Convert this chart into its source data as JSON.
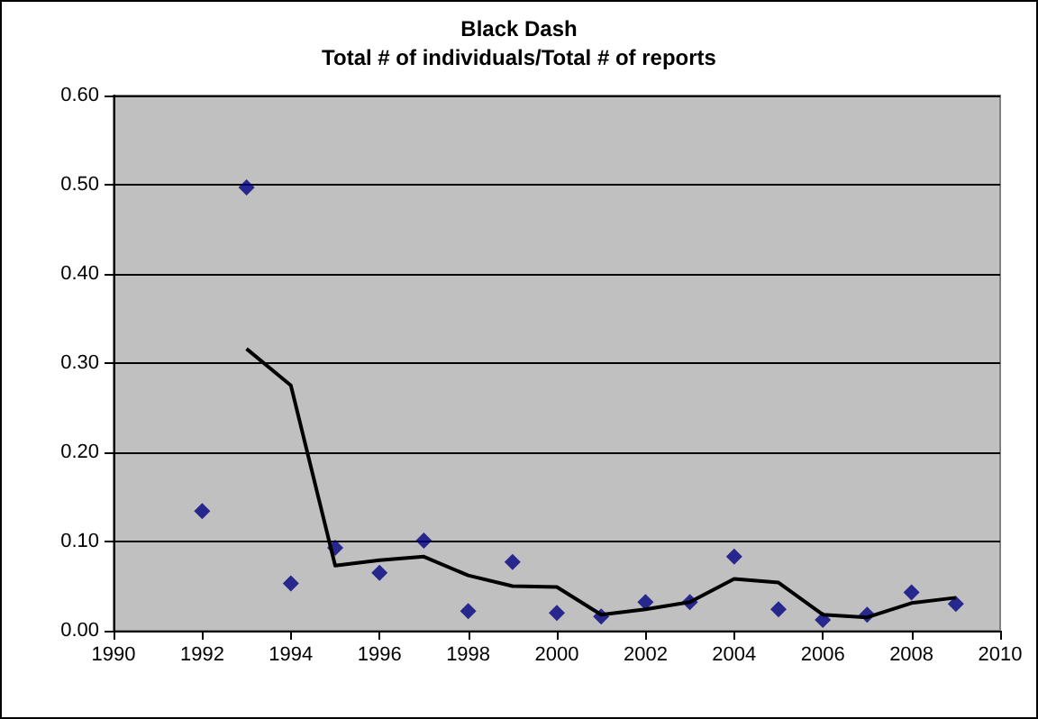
{
  "chart_data": {
    "type": "scatter",
    "title": "Black Dash",
    "subtitle": "Total # of individuals/Total # of reports",
    "xlim": [
      1990,
      2010
    ],
    "xticks": [
      1990,
      1992,
      1994,
      1996,
      1998,
      2000,
      2002,
      2004,
      2006,
      2008,
      2010
    ],
    "ylim": [
      0,
      0.6
    ],
    "yticks": [
      {
        "value": 0,
        "label": "0.00"
      },
      {
        "value": 0.1,
        "label": "0.10"
      },
      {
        "value": 0.2,
        "label": "0.20"
      },
      {
        "value": 0.3,
        "label": "0.30"
      },
      {
        "value": 0.4,
        "label": "0.40"
      },
      {
        "value": 0.5,
        "label": "0.50"
      },
      {
        "value": 0.6,
        "label": "0.60"
      }
    ],
    "grid": "y",
    "series": [
      {
        "marker": "diamond",
        "color": "#000080",
        "x": [
          1992,
          1993,
          1994,
          1995,
          1996,
          1997,
          1998,
          1999,
          2000,
          2001,
          2002,
          2003,
          2004,
          2005,
          2006,
          2007,
          2008,
          2009
        ],
        "values": [
          0.134,
          0.497,
          0.053,
          0.093,
          0.065,
          0.101,
          0.022,
          0.077,
          0.02,
          0.016,
          0.032,
          0.032,
          0.083,
          0.024,
          0.012,
          0.018,
          0.043,
          0.03
        ]
      },
      {
        "type": "line",
        "marker": "none",
        "line_style": "solid",
        "color": "#000000",
        "x": [
          1993,
          1994,
          1995,
          1996,
          1997,
          1998,
          1999,
          2000,
          2001,
          2002,
          2003,
          2004,
          2005,
          2006,
          2007,
          2008,
          2009
        ],
        "values": [
          0.316,
          0.275,
          0.073,
          0.079,
          0.083,
          0.062,
          0.05,
          0.049,
          0.018,
          0.024,
          0.032,
          0.058,
          0.054,
          0.018,
          0.015,
          0.031,
          0.037
        ]
      }
    ]
  }
}
